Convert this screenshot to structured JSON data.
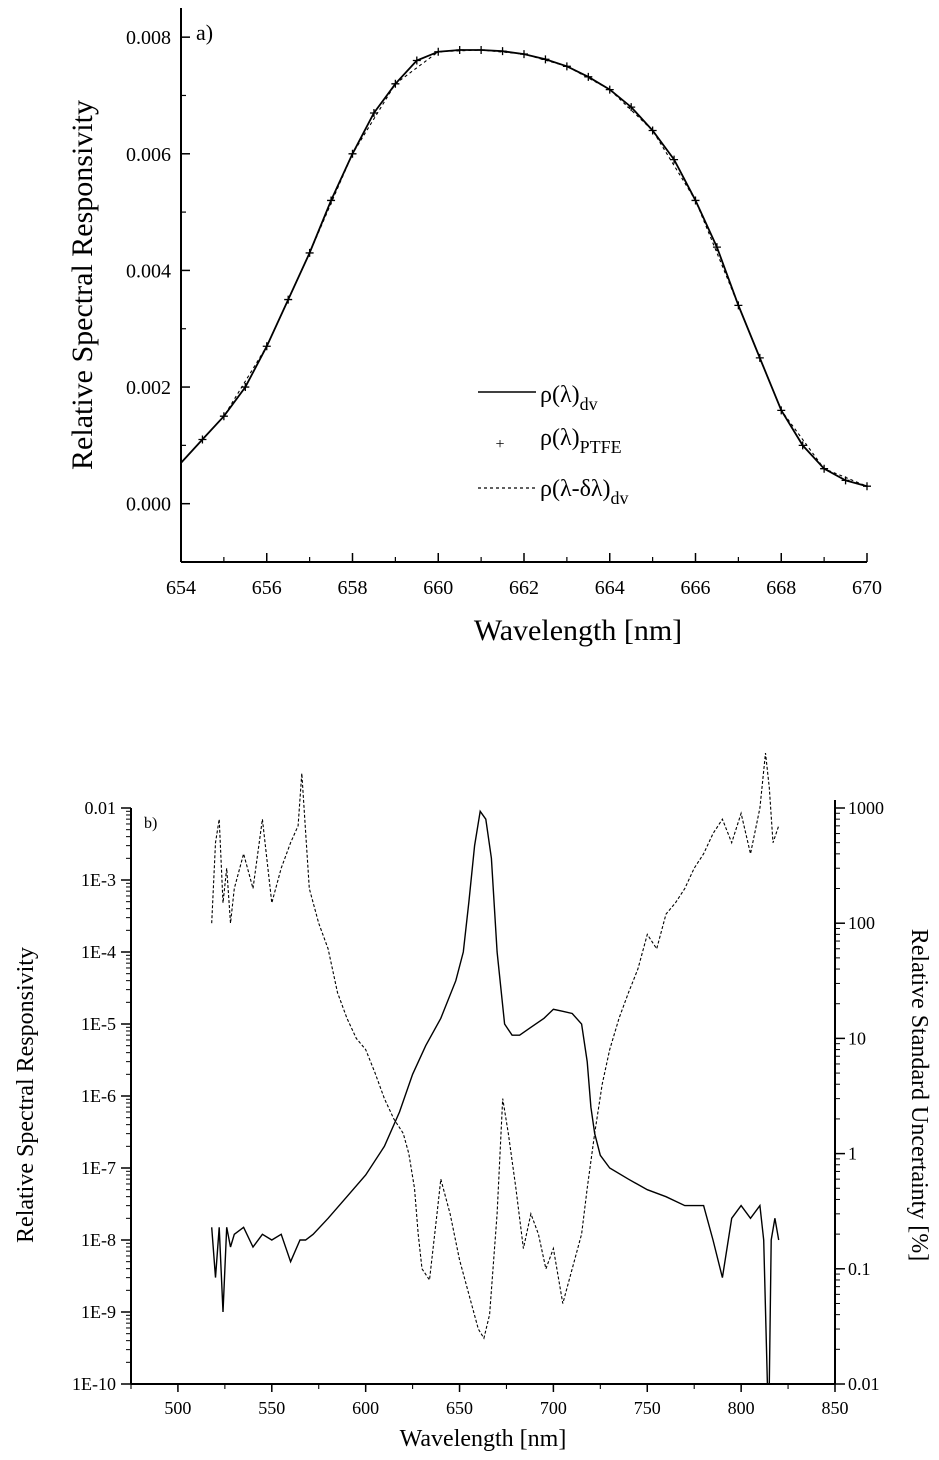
{
  "chart_data": [
    {
      "type": "line",
      "panel_label": "a)",
      "xlabel": "Wavelength [nm]",
      "ylabel": "Relative Spectral Responsivity",
      "xlim": [
        654,
        670
      ],
      "ylim": [
        -0.001,
        0.0085
      ],
      "xticks": [
        "654",
        "656",
        "658",
        "660",
        "662",
        "664",
        "666",
        "668",
        "670"
      ],
      "yticks": [
        "0.000",
        "0.002",
        "0.004",
        "0.006",
        "0.008"
      ],
      "legend_position": "lower-center",
      "series": [
        {
          "name": "ρ(λ)dv",
          "style": "solid",
          "x": [
            654,
            654.5,
            655,
            655.5,
            656,
            656.5,
            657,
            657.5,
            658,
            658.5,
            659,
            659.5,
            660,
            660.5,
            661,
            661.5,
            662,
            662.5,
            663,
            663.5,
            664,
            664.5,
            665,
            665.5,
            666,
            666.5,
            667,
            667.5,
            668,
            668.5,
            669,
            669.5,
            670
          ],
          "y": [
            0.0007,
            0.0011,
            0.0015,
            0.002,
            0.0027,
            0.0035,
            0.0043,
            0.0052,
            0.006,
            0.0067,
            0.0072,
            0.0076,
            0.00775,
            0.00778,
            0.00778,
            0.00776,
            0.00771,
            0.00762,
            0.0075,
            0.00732,
            0.0071,
            0.0068,
            0.0064,
            0.0059,
            0.0052,
            0.0044,
            0.0034,
            0.0025,
            0.0016,
            0.001,
            0.0006,
            0.0004,
            0.0003
          ]
        },
        {
          "name": "ρ(λ)PTFE",
          "style": "markers",
          "x": [
            654.5,
            655,
            655.5,
            656,
            656.5,
            657,
            657.5,
            658,
            658.5,
            659,
            659.5,
            660,
            660.5,
            661,
            661.5,
            662,
            662.5,
            663,
            663.5,
            664,
            664.5,
            665,
            665.5,
            666,
            666.5,
            667,
            667.5,
            668,
            668.5,
            669,
            669.5,
            670
          ],
          "y": [
            0.0011,
            0.0015,
            0.002,
            0.0027,
            0.0035,
            0.0043,
            0.0052,
            0.006,
            0.0067,
            0.0072,
            0.0076,
            0.00775,
            0.00778,
            0.00778,
            0.00776,
            0.00771,
            0.00762,
            0.0075,
            0.00732,
            0.0071,
            0.0068,
            0.0064,
            0.0059,
            0.0052,
            0.0044,
            0.0034,
            0.0025,
            0.0016,
            0.001,
            0.0006,
            0.0004,
            0.0003
          ]
        },
        {
          "name": "ρ(λ-δλ)dv",
          "style": "dashed",
          "x": [
            654,
            655,
            656,
            657,
            658,
            659,
            660,
            661,
            662,
            663,
            664,
            665,
            666,
            667,
            668,
            669,
            670
          ],
          "y": [
            0.0007,
            0.0015,
            0.0027,
            0.0043,
            0.006,
            0.0072,
            0.00775,
            0.00778,
            0.00771,
            0.0075,
            0.0071,
            0.0064,
            0.0052,
            0.0034,
            0.0016,
            0.0006,
            0.0003
          ]
        }
      ]
    },
    {
      "type": "line",
      "panel_label": "b)",
      "xlabel": "Wavelength [nm]",
      "ylabel_left": "Relative Spectral Responsivity",
      "ylabel_right": "Relative Standard Uncertainty [%]",
      "xlim": [
        475,
        850
      ],
      "y_left_scale": "log",
      "y_left_lim": [
        1e-10,
        0.01
      ],
      "y_right_scale": "log",
      "y_right_lim": [
        0.01,
        1000
      ],
      "xticks": [
        "500",
        "550",
        "600",
        "650",
        "700",
        "750",
        "800",
        "850"
      ],
      "yticks_left": [
        "0.01",
        "1E-3",
        "1E-4",
        "1E-5",
        "1E-6",
        "1E-7",
        "1E-8",
        "1E-9",
        "1E-10"
      ],
      "yticks_right": [
        "1000",
        "100",
        "10",
        "1",
        "0.1",
        "0.01"
      ],
      "series": [
        {
          "style": "solid",
          "axis": "left",
          "x": [
            518,
            520,
            522,
            524,
            526,
            528,
            530,
            535,
            540,
            545,
            550,
            555,
            560,
            565,
            568,
            572,
            580,
            590,
            600,
            610,
            618,
            625,
            632,
            640,
            648,
            652,
            655,
            658,
            661,
            664,
            667,
            670,
            674,
            678,
            682,
            688,
            695,
            700,
            705,
            710,
            715,
            718,
            720,
            722,
            725,
            730,
            740,
            750,
            760,
            770,
            780,
            785,
            790,
            795,
            800,
            805,
            810,
            812,
            814,
            815,
            816,
            818,
            820
          ],
          "y": [
            1.5e-08,
            3e-09,
            1.5e-08,
            1e-09,
            1.5e-08,
            8e-09,
            1.2e-08,
            1.5e-08,
            8e-09,
            1.2e-08,
            1e-08,
            1.2e-08,
            5e-09,
            1e-08,
            1e-08,
            1.2e-08,
            2e-08,
            4e-08,
            8e-08,
            2e-07,
            6e-07,
            2e-06,
            5e-06,
            1.2e-05,
            4e-05,
            0.0001,
            0.0005,
            0.003,
            0.009,
            0.007,
            0.002,
            0.0001,
            1e-05,
            7e-06,
            7e-06,
            9e-06,
            1.2e-05,
            1.6e-05,
            1.5e-05,
            1.4e-05,
            1e-05,
            3e-06,
            7e-07,
            3e-07,
            1.5e-07,
            1e-07,
            7e-08,
            5e-08,
            4e-08,
            3e-08,
            3e-08,
            1e-08,
            3e-09,
            2e-08,
            3e-08,
            2e-08,
            3e-08,
            1e-08,
            1e-10,
            1e-10,
            1e-08,
            2e-08,
            1e-08
          ]
        },
        {
          "style": "dashed",
          "axis": "right",
          "x": [
            518,
            520,
            522,
            524,
            526,
            528,
            530,
            535,
            540,
            545,
            550,
            555,
            560,
            564,
            566,
            570,
            575,
            580,
            585,
            590,
            595,
            600,
            605,
            610,
            615,
            620,
            623,
            626,
            628,
            630,
            634,
            638,
            640,
            645,
            650,
            655,
            660,
            663,
            666,
            670,
            673,
            676,
            680,
            684,
            688,
            692,
            696,
            700,
            705,
            710,
            715,
            718,
            722,
            726,
            730,
            735,
            740,
            745,
            750,
            755,
            760,
            765,
            770,
            775,
            780,
            785,
            790,
            795,
            800,
            805,
            810,
            813,
            815,
            817,
            820
          ],
          "y": [
            100,
            500,
            800,
            150,
            300,
            100,
            200,
            400,
            200,
            800,
            150,
            300,
            500,
            700,
            2000,
            200,
            100,
            60,
            25,
            15,
            10,
            8,
            5,
            3,
            2,
            1.5,
            1,
            0.5,
            0.2,
            0.1,
            0.08,
            0.3,
            0.6,
            0.3,
            0.12,
            0.06,
            0.03,
            0.025,
            0.04,
            0.3,
            3,
            1.5,
            0.5,
            0.15,
            0.3,
            0.2,
            0.1,
            0.15,
            0.05,
            0.1,
            0.2,
            0.5,
            1.5,
            4,
            8,
            15,
            25,
            40,
            80,
            60,
            120,
            150,
            200,
            300,
            400,
            600,
            800,
            500,
            900,
            400,
            1000,
            3000,
            1500,
            500,
            700
          ]
        }
      ]
    }
  ]
}
